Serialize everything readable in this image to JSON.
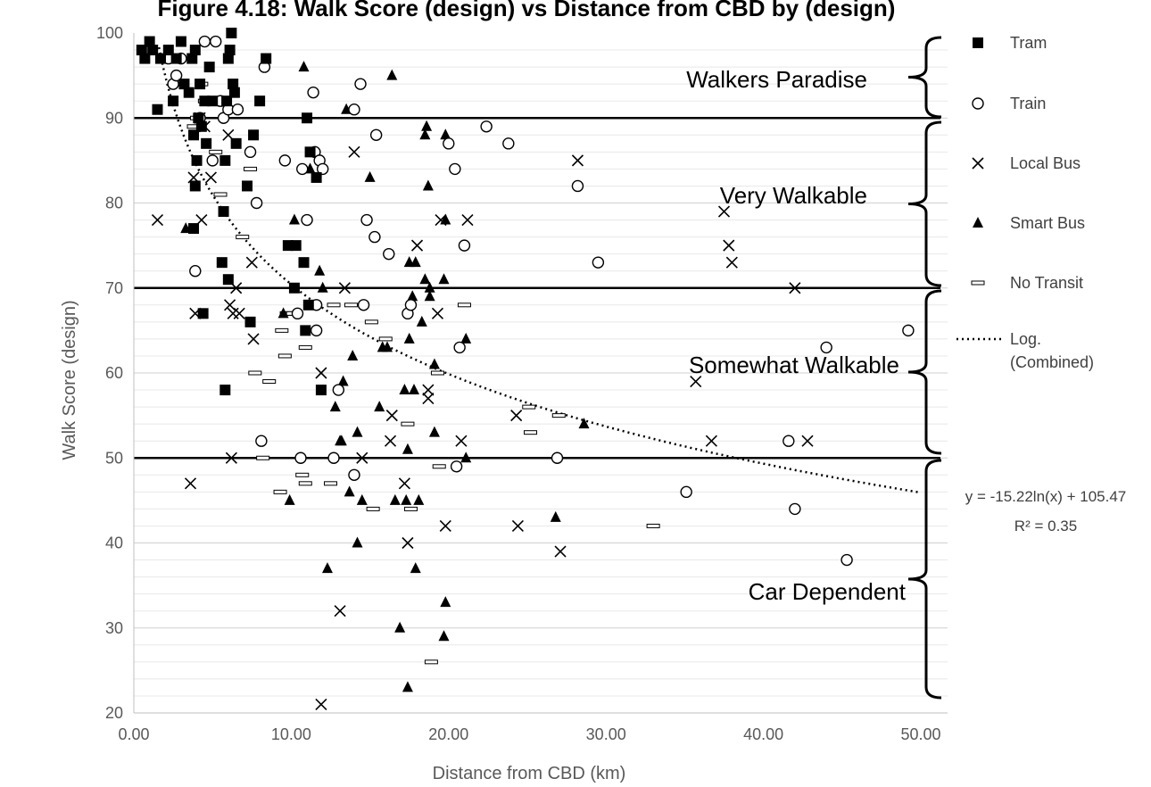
{
  "chart_data": {
    "type": "scatter",
    "title": "Figure 4.18: Walk Score (design) vs Distance from CBD by (design)",
    "xlabel": "Distance from CBD (km)",
    "ylabel": "Walk Score (design)",
    "xlim": [
      0,
      50
    ],
    "ylim": [
      20,
      100
    ],
    "x_ticks": [
      "0.00",
      "10.00",
      "20.00",
      "30.00",
      "40.00",
      "50.00"
    ],
    "y_ticks": [
      "20",
      "30",
      "40",
      "50",
      "60",
      "70",
      "80",
      "90",
      "100"
    ],
    "grid": true,
    "legend_position": "right",
    "threshold_lines": [
      90,
      70,
      50
    ],
    "zones": [
      {
        "label": "Walkers Paradise",
        "range": [
          90,
          100
        ]
      },
      {
        "label": "Very Walkable",
        "range": [
          70,
          90
        ]
      },
      {
        "label": "Somewhat Walkable",
        "range": [
          50,
          70
        ]
      },
      {
        "label": "Car Dependent",
        "range": [
          20,
          50
        ]
      }
    ],
    "trendline": {
      "name": "Log. (Combined)",
      "a": -15.22,
      "b": 105.47,
      "equation": "y = -15.22ln(x) + 105.47",
      "r2": "R² = 0.35"
    },
    "series": [
      {
        "name": "Tram",
        "marker": "square",
        "points": [
          [
            0.5,
            98
          ],
          [
            0.7,
            97
          ],
          [
            1.0,
            99
          ],
          [
            1.2,
            98
          ],
          [
            1.5,
            91
          ],
          [
            1.7,
            97
          ],
          [
            2.2,
            98
          ],
          [
            2.5,
            92
          ],
          [
            2.7,
            97
          ],
          [
            3.0,
            99
          ],
          [
            3.2,
            94
          ],
          [
            3.5,
            93
          ],
          [
            3.7,
            97
          ],
          [
            3.8,
            88
          ],
          [
            3.9,
            98
          ],
          [
            4.0,
            85
          ],
          [
            4.1,
            90
          ],
          [
            4.2,
            94
          ],
          [
            4.3,
            89
          ],
          [
            4.5,
            92
          ],
          [
            4.6,
            87
          ],
          [
            4.8,
            96
          ],
          [
            5.0,
            92
          ],
          [
            3.9,
            82
          ],
          [
            3.8,
            77
          ],
          [
            4.4,
            67
          ],
          [
            5.6,
            73
          ],
          [
            5.7,
            79
          ],
          [
            5.8,
            85
          ],
          [
            5.9,
            92
          ],
          [
            6.0,
            97
          ],
          [
            6.1,
            98
          ],
          [
            6.2,
            100
          ],
          [
            6.3,
            94
          ],
          [
            6.4,
            93
          ],
          [
            6.5,
            87
          ],
          [
            6.0,
            71
          ],
          [
            5.8,
            58
          ],
          [
            7.2,
            82
          ],
          [
            7.4,
            66
          ],
          [
            7.6,
            88
          ],
          [
            8.0,
            92
          ],
          [
            8.4,
            97
          ],
          [
            9.8,
            75
          ],
          [
            10.3,
            75
          ],
          [
            10.2,
            70
          ],
          [
            10.8,
            73
          ],
          [
            10.9,
            65
          ],
          [
            11.0,
            90
          ],
          [
            11.2,
            86
          ],
          [
            11.1,
            68
          ],
          [
            11.6,
            83
          ],
          [
            11.9,
            58
          ]
        ]
      },
      {
        "name": "Train",
        "marker": "circle",
        "points": [
          [
            2.2,
            97
          ],
          [
            2.5,
            94
          ],
          [
            2.7,
            95
          ],
          [
            3.0,
            97
          ],
          [
            4.2,
            90
          ],
          [
            4.5,
            99
          ],
          [
            5.2,
            99
          ],
          [
            5.0,
            85
          ],
          [
            5.5,
            92
          ],
          [
            5.7,
            90
          ],
          [
            3.9,
            72
          ],
          [
            6.0,
            91
          ],
          [
            6.6,
            91
          ],
          [
            7.4,
            86
          ],
          [
            7.8,
            80
          ],
          [
            8.3,
            96
          ],
          [
            8.1,
            52
          ],
          [
            9.6,
            85
          ],
          [
            10.4,
            67
          ],
          [
            10.6,
            50
          ],
          [
            10.7,
            84
          ],
          [
            11.0,
            78
          ],
          [
            11.4,
            93
          ],
          [
            11.5,
            86
          ],
          [
            11.6,
            68
          ],
          [
            11.6,
            65
          ],
          [
            11.8,
            85
          ],
          [
            12.0,
            84
          ],
          [
            12.7,
            50
          ],
          [
            13.0,
            58
          ],
          [
            14.0,
            91
          ],
          [
            14.0,
            48
          ],
          [
            14.4,
            94
          ],
          [
            14.6,
            68
          ],
          [
            14.8,
            78
          ],
          [
            15.3,
            76
          ],
          [
            15.4,
            88
          ],
          [
            16.2,
            74
          ],
          [
            17.4,
            67
          ],
          [
            17.6,
            68
          ],
          [
            20.0,
            87
          ],
          [
            20.4,
            84
          ],
          [
            20.5,
            49
          ],
          [
            20.7,
            63
          ],
          [
            21.0,
            75
          ],
          [
            22.4,
            89
          ],
          [
            23.8,
            87
          ],
          [
            26.9,
            50
          ],
          [
            28.2,
            82
          ],
          [
            29.5,
            73
          ],
          [
            35.1,
            46
          ],
          [
            41.6,
            52
          ],
          [
            42.0,
            44
          ],
          [
            44.0,
            63
          ],
          [
            45.3,
            38
          ],
          [
            49.2,
            65
          ]
        ]
      },
      {
        "name": "Local Bus",
        "marker": "x",
        "points": [
          [
            1.5,
            78
          ],
          [
            3.6,
            47
          ],
          [
            3.8,
            83
          ],
          [
            3.9,
            67
          ],
          [
            4.2,
            90
          ],
          [
            4.3,
            78
          ],
          [
            4.5,
            89
          ],
          [
            4.9,
            83
          ],
          [
            6.0,
            88
          ],
          [
            6.1,
            68
          ],
          [
            6.2,
            50
          ],
          [
            6.3,
            67
          ],
          [
            6.5,
            70
          ],
          [
            6.7,
            67
          ],
          [
            7.5,
            73
          ],
          [
            7.6,
            64
          ],
          [
            11.9,
            60
          ],
          [
            11.9,
            21
          ],
          [
            13.1,
            32
          ],
          [
            13.4,
            70
          ],
          [
            14.0,
            86
          ],
          [
            14.5,
            50
          ],
          [
            16.4,
            55
          ],
          [
            16.3,
            52
          ],
          [
            17.2,
            47
          ],
          [
            17.4,
            40
          ],
          [
            18.0,
            75
          ],
          [
            18.7,
            57
          ],
          [
            18.7,
            58
          ],
          [
            19.3,
            67
          ],
          [
            19.5,
            78
          ],
          [
            19.8,
            42
          ],
          [
            20.8,
            52
          ],
          [
            21.2,
            78
          ],
          [
            24.3,
            55
          ],
          [
            24.4,
            42
          ],
          [
            27.1,
            39
          ],
          [
            28.2,
            85
          ],
          [
            35.7,
            59
          ],
          [
            36.7,
            52
          ],
          [
            37.5,
            79
          ],
          [
            37.8,
            75
          ],
          [
            38.0,
            73
          ],
          [
            42.0,
            70
          ],
          [
            42.8,
            52
          ]
        ]
      },
      {
        "name": "Smart Bus",
        "marker": "triangle",
        "points": [
          [
            3.3,
            77
          ],
          [
            9.5,
            67
          ],
          [
            9.9,
            45
          ],
          [
            10.2,
            78
          ],
          [
            10.8,
            96
          ],
          [
            11.2,
            84
          ],
          [
            11.8,
            72
          ],
          [
            12.0,
            70
          ],
          [
            12.3,
            37
          ],
          [
            12.8,
            56
          ],
          [
            13.1,
            52
          ],
          [
            13.2,
            52
          ],
          [
            13.3,
            59
          ],
          [
            13.5,
            91
          ],
          [
            13.7,
            46
          ],
          [
            13.9,
            62
          ],
          [
            14.2,
            53
          ],
          [
            14.2,
            40
          ],
          [
            14.5,
            45
          ],
          [
            15.0,
            83
          ],
          [
            15.6,
            56
          ],
          [
            15.8,
            63
          ],
          [
            16.1,
            63
          ],
          [
            16.4,
            95
          ],
          [
            16.6,
            45
          ],
          [
            16.9,
            30
          ],
          [
            17.2,
            58
          ],
          [
            17.3,
            45
          ],
          [
            17.4,
            51
          ],
          [
            17.5,
            64
          ],
          [
            17.4,
            23
          ],
          [
            17.5,
            73
          ],
          [
            17.7,
            69
          ],
          [
            17.8,
            58
          ],
          [
            17.9,
            73
          ],
          [
            17.9,
            37
          ],
          [
            18.1,
            45
          ],
          [
            18.3,
            66
          ],
          [
            18.5,
            71
          ],
          [
            18.5,
            88
          ],
          [
            18.6,
            89
          ],
          [
            18.7,
            82
          ],
          [
            18.8,
            69
          ],
          [
            18.8,
            70
          ],
          [
            19.1,
            61
          ],
          [
            19.1,
            53
          ],
          [
            19.7,
            71
          ],
          [
            19.8,
            88
          ],
          [
            19.8,
            78
          ],
          [
            19.8,
            33
          ],
          [
            19.7,
            29
          ],
          [
            21.1,
            50
          ],
          [
            21.1,
            64
          ],
          [
            26.8,
            43
          ],
          [
            28.6,
            54
          ]
        ]
      },
      {
        "name": "No Transit",
        "marker": "dash",
        "points": [
          [
            3.8,
            89
          ],
          [
            4.0,
            90
          ],
          [
            4.3,
            94
          ],
          [
            4.5,
            92
          ],
          [
            5.2,
            86
          ],
          [
            5.5,
            81
          ],
          [
            5.7,
            92
          ],
          [
            6.9,
            76
          ],
          [
            7.4,
            84
          ],
          [
            7.7,
            60
          ],
          [
            8.2,
            50
          ],
          [
            8.6,
            59
          ],
          [
            9.3,
            46
          ],
          [
            9.4,
            65
          ],
          [
            9.6,
            62
          ],
          [
            9.7,
            67
          ],
          [
            10.1,
            67
          ],
          [
            10.7,
            48
          ],
          [
            10.9,
            63
          ],
          [
            10.9,
            47
          ],
          [
            12.5,
            47
          ],
          [
            12.7,
            68
          ],
          [
            13.8,
            68
          ],
          [
            15.1,
            66
          ],
          [
            15.2,
            44
          ],
          [
            16.0,
            64
          ],
          [
            17.4,
            54
          ],
          [
            17.6,
            44
          ],
          [
            18.9,
            26
          ],
          [
            19.3,
            60
          ],
          [
            19.4,
            49
          ],
          [
            21.0,
            68
          ],
          [
            25.1,
            56
          ],
          [
            25.2,
            53
          ],
          [
            27.0,
            55
          ],
          [
            33.0,
            42
          ]
        ]
      }
    ]
  }
}
